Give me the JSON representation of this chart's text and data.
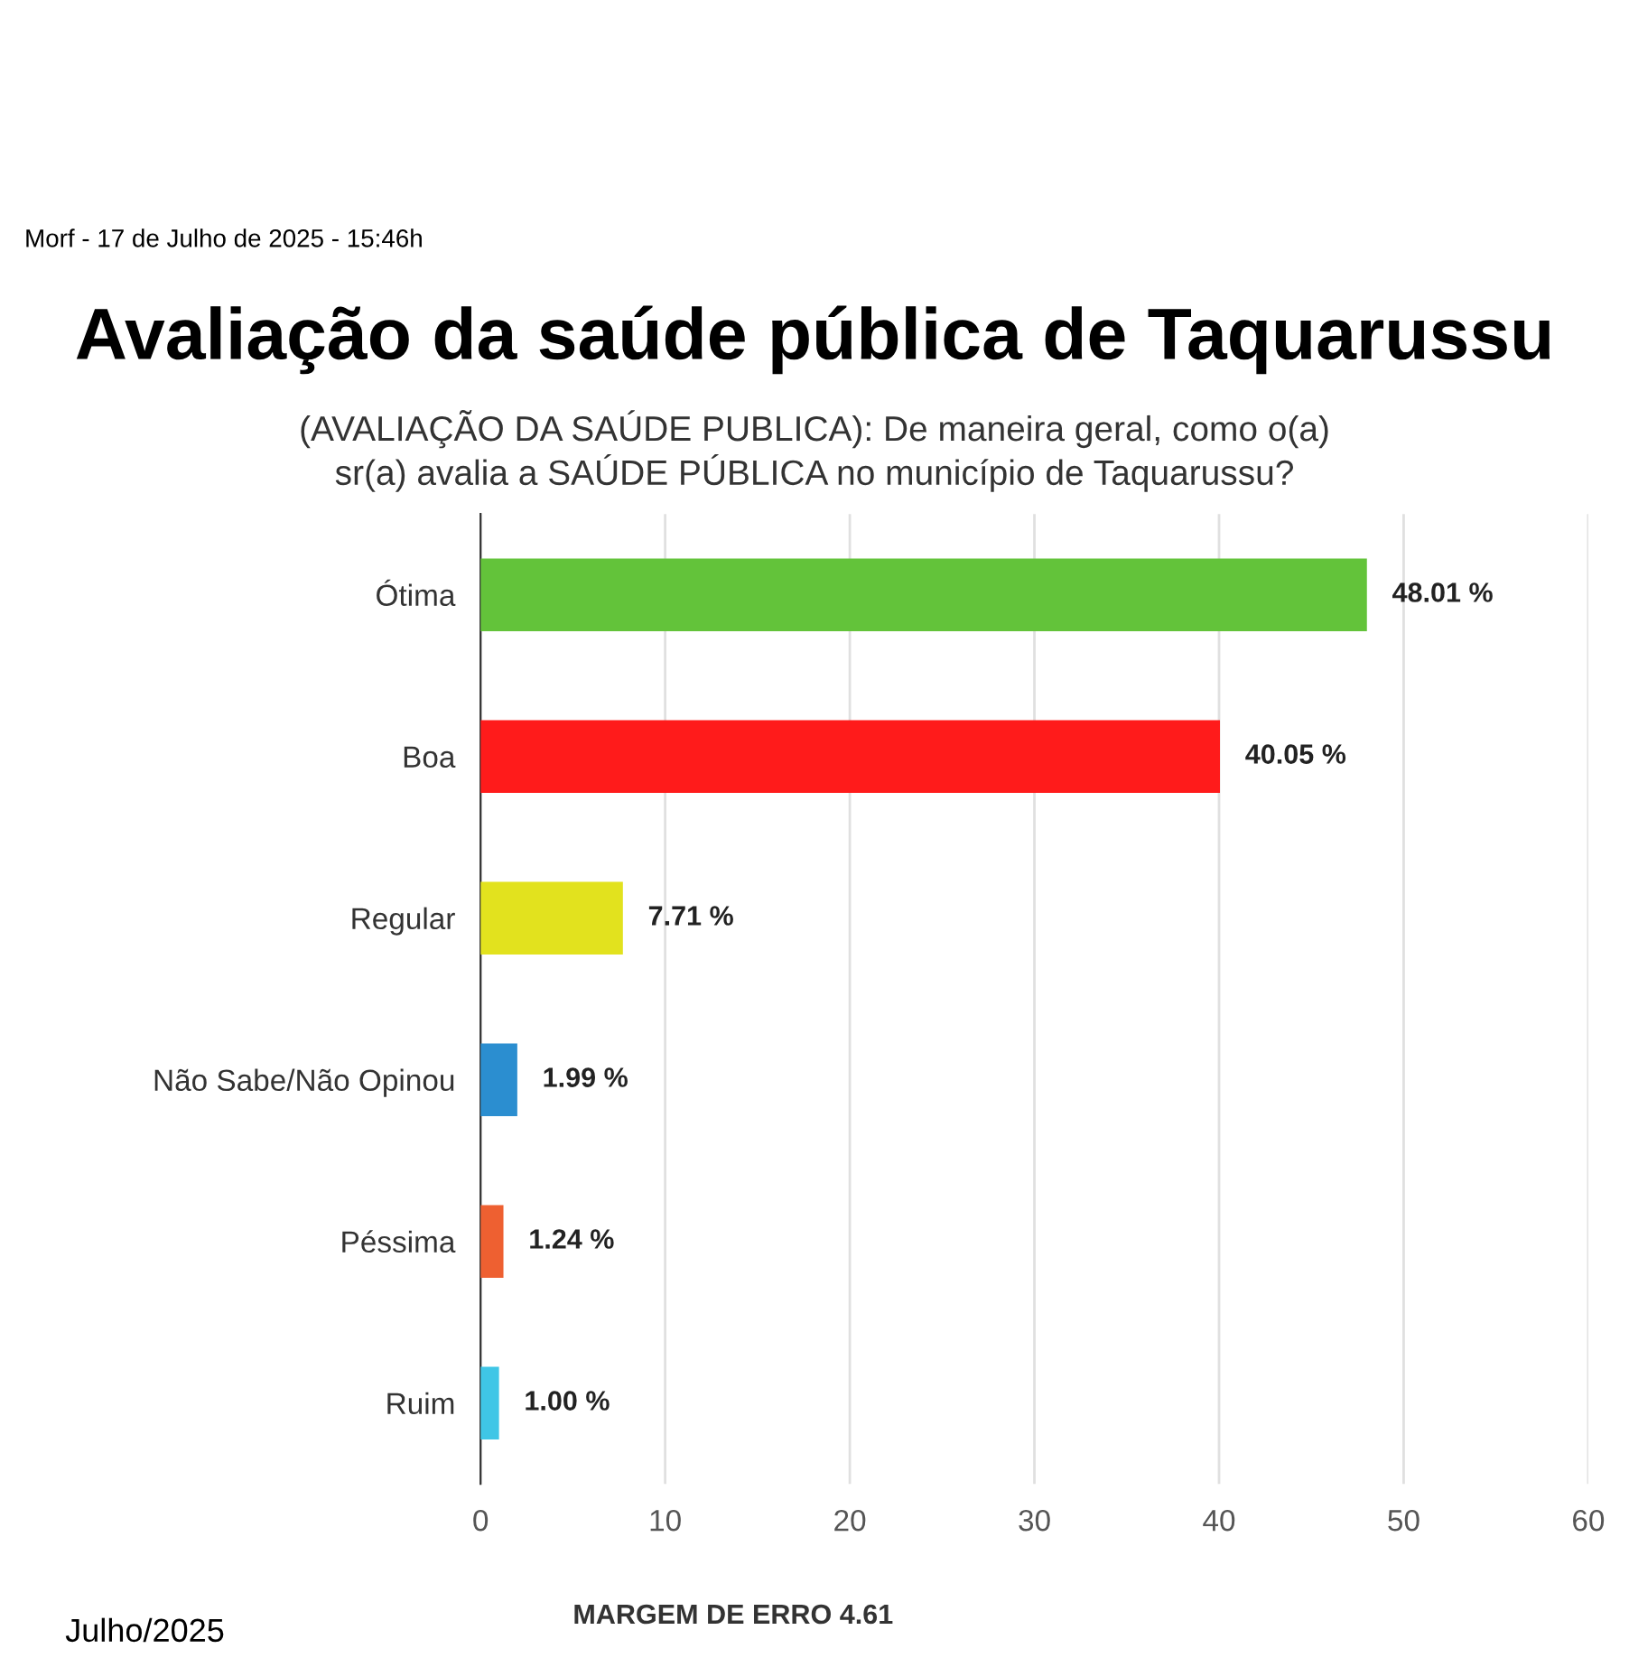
{
  "chart_data": {
    "type": "bar",
    "orientation": "horizontal",
    "title": "Avaliação da saúde pública de Taquarussu",
    "subtitle": "(AVALIAÇÃO DA SAÚDE PUBLICA): De maneira geral, como o(a)\nsr(a) avalia a SAÚDE PÚBLICA no município de Taquarussu?",
    "categories": [
      "Ótima",
      "Boa",
      "Regular",
      "Não Sabe/Não Opinou",
      "Péssima",
      "Ruim"
    ],
    "values": [
      48.01,
      40.05,
      7.71,
      1.99,
      1.24,
      1.0
    ],
    "colors": [
      "#63c33a",
      "#ff1b1b",
      "#e2e21e",
      "#2b8ed0",
      "#ee6031",
      "#3fc6e6"
    ],
    "value_labels": [
      "48.01 %",
      "40.05 %",
      "7.71 %",
      "1.99 %",
      "1.24 %",
      "1.00 %"
    ],
    "xlim": [
      0,
      60
    ],
    "xticks": [
      0,
      10,
      20,
      30,
      40,
      50,
      60
    ],
    "grid": "x",
    "annotations": [
      "Morf - 17 de Julho de 2025 - 15:46h",
      "MARGEM DE ERRO 4.61",
      "Julho/2025"
    ]
  }
}
